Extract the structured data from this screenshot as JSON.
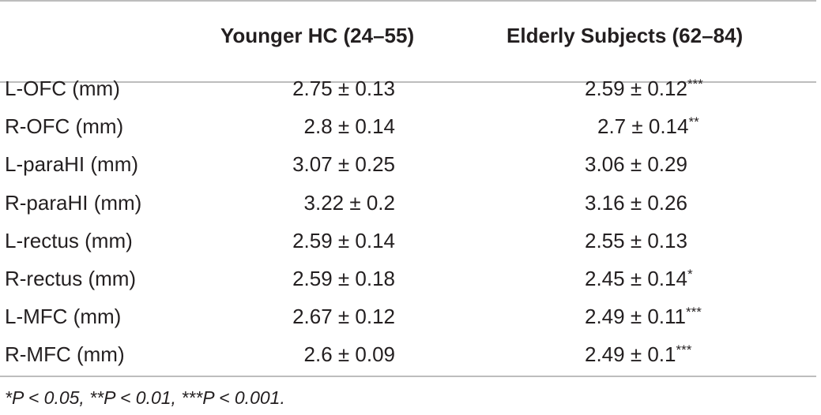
{
  "headers": {
    "col_label": "",
    "col_younger": "Younger HC (24–55)",
    "col_elderly": "Elderly Subjects (62–84)"
  },
  "rows": [
    {
      "label": "L-OFC (mm)",
      "younger": "2.75 ± 0.13",
      "elderly": "2.59 ± 0.12",
      "sig": "***"
    },
    {
      "label": "R-OFC (mm)",
      "younger": "2.8 ± 0.14",
      "elderly": "2.7 ± 0.14",
      "sig": "**"
    },
    {
      "label": "L-paraHI (mm)",
      "younger": "3.07 ± 0.25",
      "elderly": "3.06 ± 0.29",
      "sig": ""
    },
    {
      "label": "R-paraHI (mm)",
      "younger": "3.22 ± 0.2",
      "elderly": "3.16 ± 0.26",
      "sig": ""
    },
    {
      "label": "L-rectus (mm)",
      "younger": "2.59 ± 0.14",
      "elderly": "2.55 ± 0.13",
      "sig": ""
    },
    {
      "label": "R-rectus (mm)",
      "younger": "2.59 ± 0.18",
      "elderly": "2.45 ± 0.14",
      "sig": "*"
    },
    {
      "label": "L-MFC (mm)",
      "younger": "2.67 ± 0.12",
      "elderly": "2.49 ± 0.11",
      "sig": "***"
    },
    {
      "label": "R-MFC (mm)",
      "younger": "2.6 ± 0.09",
      "elderly": "2.49 ± 0.1",
      "sig": "***"
    }
  ],
  "footnote": "*P < 0.05, **P < 0.01, ***P < 0.001."
}
